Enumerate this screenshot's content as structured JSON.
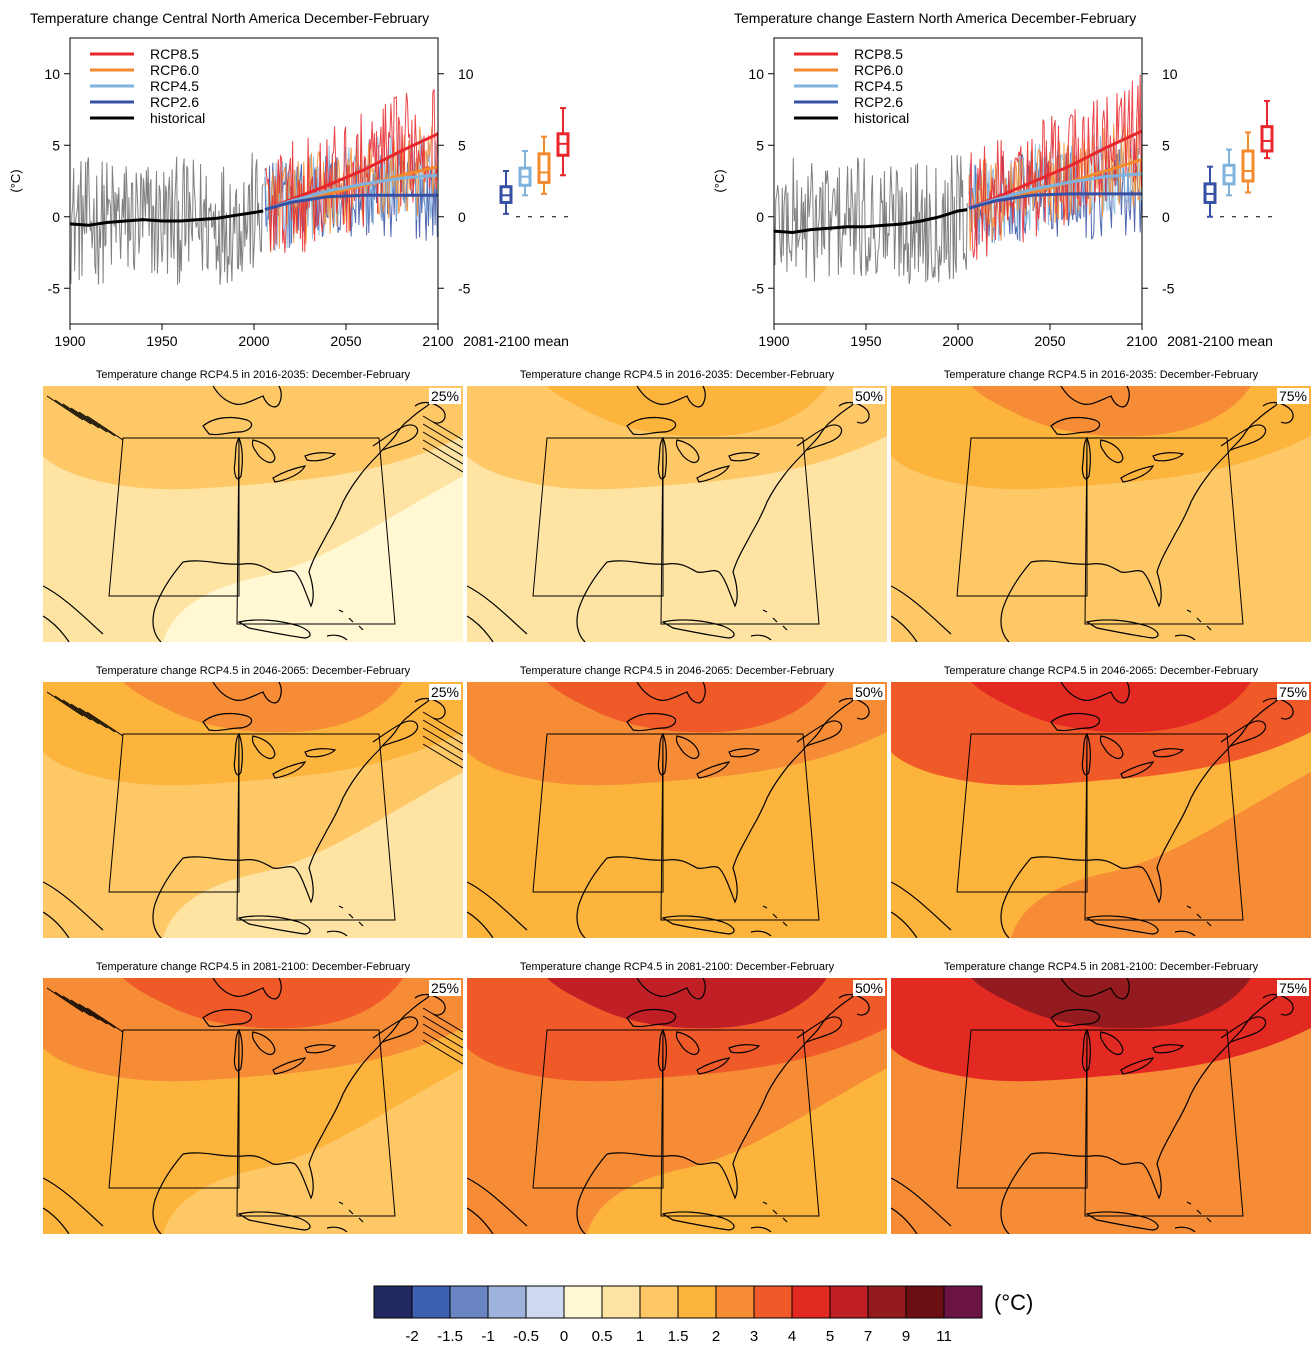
{
  "colors": {
    "rcp85": "#e8262b",
    "rcp60": "#f4892e",
    "rcp45": "#7fb3de",
    "rcp26": "#3550a4",
    "historical": "#000000",
    "spread": "#808080"
  },
  "chart_data": [
    {
      "type": "line",
      "title": "Temperature change Central North America December-February",
      "ylabel": "(°C)",
      "xlim": [
        1900,
        2100
      ],
      "ylim": [
        -7.5,
        12.5
      ],
      "xticks": [
        1900,
        1950,
        2000,
        2050,
        2100
      ],
      "yticks": [
        -5,
        0,
        5,
        10
      ],
      "legend": [
        "RCP8.5",
        "RCP6.0",
        "RCP4.5",
        "RCP2.6",
        "historical"
      ],
      "legend_position": "top-left",
      "series": [
        {
          "name": "historical",
          "x": [
            1900,
            1910,
            1920,
            1930,
            1940,
            1950,
            1960,
            1970,
            1980,
            1990,
            2000,
            2005
          ],
          "y": [
            -0.5,
            -0.6,
            -0.4,
            -0.3,
            -0.2,
            -0.3,
            -0.3,
            -0.2,
            -0.1,
            0.1,
            0.3,
            0.4
          ]
        },
        {
          "name": "RCP8.5",
          "x": [
            2006,
            2020,
            2040,
            2060,
            2080,
            2100
          ],
          "y": [
            0.5,
            1.2,
            2.2,
            3.3,
            4.6,
            5.8
          ]
        },
        {
          "name": "RCP6.0",
          "x": [
            2006,
            2020,
            2040,
            2060,
            2080,
            2100
          ],
          "y": [
            0.5,
            1.0,
            1.6,
            2.2,
            2.9,
            3.5
          ]
        },
        {
          "name": "RCP4.5",
          "x": [
            2006,
            2020,
            2040,
            2060,
            2080,
            2100
          ],
          "y": [
            0.5,
            1.1,
            1.8,
            2.3,
            2.7,
            2.9
          ]
        },
        {
          "name": "RCP2.6",
          "x": [
            2006,
            2020,
            2040,
            2060,
            2080,
            2100
          ],
          "y": [
            0.5,
            1.0,
            1.4,
            1.5,
            1.5,
            1.5
          ]
        }
      ],
      "boxplot": {
        "label": "2081-2100 mean",
        "boxes": [
          {
            "name": "RCP2.6",
            "min": 0.2,
            "q1": 1.0,
            "median": 1.5,
            "q3": 2.1,
            "max": 3.2
          },
          {
            "name": "RCP4.5",
            "min": 1.5,
            "q1": 2.2,
            "median": 2.8,
            "q3": 3.4,
            "max": 4.6
          },
          {
            "name": "RCP6.0",
            "min": 1.6,
            "q1": 2.4,
            "median": 3.1,
            "q3": 4.4,
            "max": 5.6
          },
          {
            "name": "RCP8.5",
            "min": 2.9,
            "q1": 4.3,
            "median": 5.1,
            "q3": 5.8,
            "max": 7.6
          }
        ]
      }
    },
    {
      "type": "line",
      "title": "Temperature change Eastern North America December-February",
      "ylabel": "(°C)",
      "xlim": [
        1900,
        2100
      ],
      "ylim": [
        -7.5,
        12.5
      ],
      "xticks": [
        1900,
        1950,
        2000,
        2050,
        2100
      ],
      "yticks": [
        -5,
        0,
        5,
        10
      ],
      "legend": [
        "RCP8.5",
        "RCP6.0",
        "RCP4.5",
        "RCP2.6",
        "historical"
      ],
      "legend_position": "top-left",
      "series": [
        {
          "name": "historical",
          "x": [
            1900,
            1910,
            1920,
            1930,
            1940,
            1950,
            1960,
            1970,
            1980,
            1990,
            2000,
            2005
          ],
          "y": [
            -1.0,
            -1.1,
            -0.9,
            -0.8,
            -0.7,
            -0.7,
            -0.6,
            -0.5,
            -0.3,
            0.0,
            0.4,
            0.5
          ]
        },
        {
          "name": "RCP8.5",
          "x": [
            2006,
            2020,
            2040,
            2060,
            2080,
            2100
          ],
          "y": [
            0.6,
            1.3,
            2.4,
            3.5,
            4.8,
            6.0
          ]
        },
        {
          "name": "RCP6.0",
          "x": [
            2006,
            2020,
            2040,
            2060,
            2080,
            2100
          ],
          "y": [
            0.6,
            1.1,
            1.7,
            2.4,
            3.2,
            4.0
          ]
        },
        {
          "name": "RCP4.5",
          "x": [
            2006,
            2020,
            2040,
            2060,
            2080,
            2100
          ],
          "y": [
            0.6,
            1.2,
            1.9,
            2.4,
            2.8,
            3.0
          ]
        },
        {
          "name": "RCP2.6",
          "x": [
            2006,
            2020,
            2040,
            2060,
            2080,
            2100
          ],
          "y": [
            0.6,
            1.1,
            1.5,
            1.6,
            1.6,
            1.6
          ]
        }
      ],
      "boxplot": {
        "label": "2081-2100 mean",
        "boxes": [
          {
            "name": "RCP2.6",
            "min": 0.0,
            "q1": 1.0,
            "median": 1.6,
            "q3": 2.3,
            "max": 3.5
          },
          {
            "name": "RCP4.5",
            "min": 1.5,
            "q1": 2.3,
            "median": 2.9,
            "q3": 3.6,
            "max": 4.7
          },
          {
            "name": "RCP6.0",
            "min": 1.7,
            "q1": 2.5,
            "median": 3.2,
            "q3": 4.6,
            "max": 5.9
          },
          {
            "name": "RCP8.5",
            "min": 4.1,
            "q1": 4.6,
            "median": 5.3,
            "q3": 6.3,
            "max": 8.1
          }
        ]
      }
    },
    {
      "type": "heatmap",
      "colorbar": {
        "unit": "(°C)",
        "colors": [
          "#232a62",
          "#3e60b2",
          "#6b85c2",
          "#9eb3dc",
          "#cfd9ef",
          "#fff8d2",
          "#fee3a3",
          "#fec866",
          "#fcb43d",
          "#f68c36",
          "#ef5a28",
          "#e32a22",
          "#c01f26",
          "#931a1e",
          "#6c0f13",
          "#6b1444"
        ],
        "labels": [
          "-2",
          "-1.5",
          "-1",
          "-0.5",
          "0",
          "0.5",
          "1",
          "1.5",
          "2",
          "3",
          "4",
          "5",
          "7",
          "9",
          "11"
        ]
      },
      "panels": [
        {
          "title": "Temperature change RCP4.5 in 2016-2035: December-February",
          "percentile": "25%",
          "base": "#fee3a3",
          "light": "#fff8d2",
          "band": "#fec866",
          "top": "#fec866",
          "hatch": true
        },
        {
          "title": "Temperature change RCP4.5 in 2016-2035: December-February",
          "percentile": "50%",
          "base": "#fee3a3",
          "light": "#fee3a3",
          "band": "#fec866",
          "top": "#fcb43d",
          "hatch": false
        },
        {
          "title": "Temperature change RCP4.5 in 2016-2035: December-February",
          "percentile": "75%",
          "base": "#fec866",
          "light": "#fec866",
          "band": "#fcb43d",
          "top": "#f68c36",
          "hatch": false
        },
        {
          "title": "Temperature change RCP4.5 in 2046-2065: December-February",
          "percentile": "25%",
          "base": "#fec866",
          "light": "#fee3a3",
          "band": "#fcb43d",
          "top": "#f68c36",
          "hatch": true
        },
        {
          "title": "Temperature change RCP4.5 in 2046-2065: December-February",
          "percentile": "50%",
          "base": "#fcb43d",
          "light": "#fcb43d",
          "band": "#f68c36",
          "top": "#ef5a28",
          "hatch": false
        },
        {
          "title": "Temperature change RCP4.5 in 2046-2065: December-February",
          "percentile": "75%",
          "base": "#fcb43d",
          "light": "#f68c36",
          "band": "#ef5a28",
          "top": "#e32a22",
          "hatch": false
        },
        {
          "title": "Temperature change RCP4.5 in 2081-2100: December-February",
          "percentile": "25%",
          "base": "#fcb43d",
          "light": "#fec866",
          "band": "#f68c36",
          "top": "#ef5a28",
          "hatch": true
        },
        {
          "title": "Temperature change RCP4.5 in 2081-2100: December-February",
          "percentile": "50%",
          "base": "#f68c36",
          "light": "#fcb43d",
          "band": "#ef5a28",
          "top": "#c01f26",
          "hatch": false
        },
        {
          "title": "Temperature change RCP4.5 in 2081-2100: December-February",
          "percentile": "75%",
          "base": "#f68c36",
          "light": "#f68c36",
          "band": "#e32a22",
          "top": "#931a1e",
          "hatch": false
        }
      ]
    }
  ]
}
